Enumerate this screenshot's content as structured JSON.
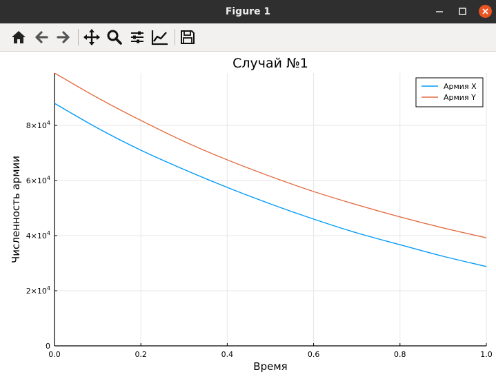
{
  "window": {
    "title": "Figure 1"
  },
  "toolbar": {
    "buttons": [
      {
        "icon": "home-icon"
      },
      {
        "icon": "back-arrow-icon"
      },
      {
        "icon": "forward-arrow-icon"
      },
      {
        "icon": "pan-icon"
      },
      {
        "icon": "zoom-icon"
      },
      {
        "icon": "subplots-config-icon"
      },
      {
        "icon": "axes-edit-icon"
      },
      {
        "icon": "save-icon"
      }
    ]
  },
  "chart_data": {
    "type": "line",
    "title": "Случай №1",
    "xlabel": "Время",
    "ylabel": "Численность армии",
    "xlim": [
      0,
      1
    ],
    "ylim": [
      0,
      99000
    ],
    "x_ticks": [
      0.0,
      0.2,
      0.4,
      0.6,
      0.8,
      1.0
    ],
    "x_tick_labels": [
      "0.0",
      "0.2",
      "0.4",
      "0.6",
      "0.8",
      "1.0"
    ],
    "y_ticks": [
      0,
      20000,
      40000,
      60000,
      80000
    ],
    "y_tick_labels": [
      {
        "base": "0",
        "exp": ""
      },
      {
        "base": "2×10",
        "exp": "4"
      },
      {
        "base": "4×10",
        "exp": "4"
      },
      {
        "base": "6×10",
        "exp": "4"
      },
      {
        "base": "8×10",
        "exp": "4"
      }
    ],
    "grid": true,
    "legend_position": "top-right",
    "x": [
      0.0,
      0.1,
      0.2,
      0.3,
      0.4,
      0.5,
      0.6,
      0.7,
      0.8,
      0.9,
      1.0
    ],
    "series": [
      {
        "name": "Армия X",
        "color": "#009af9",
        "values": [
          88000,
          79000,
          71000,
          64000,
          57500,
          51500,
          46000,
          41000,
          36700,
          32500,
          28800
        ]
      },
      {
        "name": "Армия Y",
        "color": "#e26f46",
        "values": [
          99000,
          90000,
          81800,
          74200,
          67500,
          61500,
          56000,
          51200,
          46800,
          42800,
          39200
        ]
      }
    ]
  }
}
